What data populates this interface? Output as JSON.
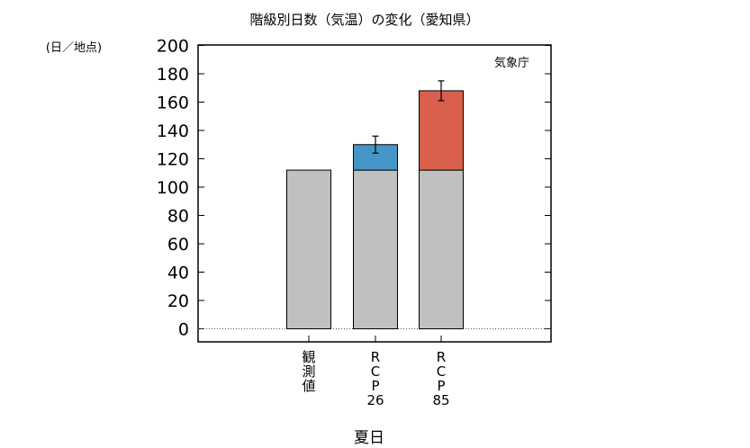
{
  "chart_data": {
    "type": "bar",
    "title": "階級別日数（気温）の変化（愛知県）",
    "unit_label": "(日／地点)",
    "source_label": "気象庁",
    "xlabel": "夏日",
    "ylim": [
      0,
      200
    ],
    "yticks": [
      0,
      20,
      40,
      60,
      80,
      100,
      120,
      140,
      160,
      180,
      200
    ],
    "grid": false,
    "categories": [
      {
        "label": "観\n測\n値",
        "base": 112,
        "increase": 0,
        "error": null
      },
      {
        "label": "R\nC\nP\n26",
        "base": 112,
        "increase": 18,
        "error": 6
      },
      {
        "label": "R\nC\nP\n85",
        "base": 112,
        "increase": 56,
        "error": 7
      }
    ],
    "series": [
      {
        "name": "",
        "color": "#c0c0c0"
      },
      {
        "name": "",
        "colors": [
          "#c0c0c0",
          "#4596c8",
          "#d9604c"
        ]
      }
    ],
    "zero_line": "dotted"
  }
}
